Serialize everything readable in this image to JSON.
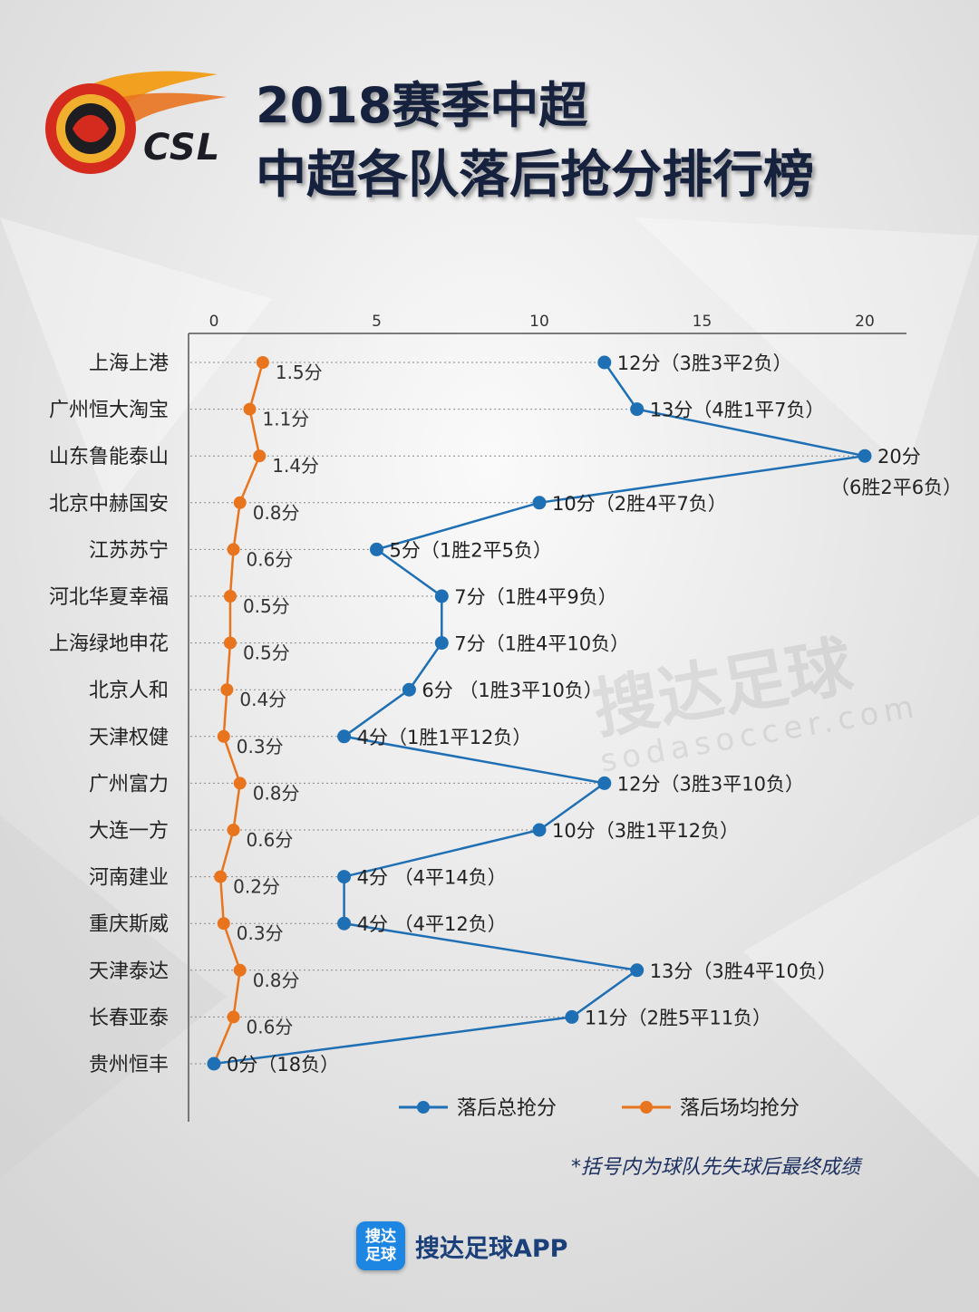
{
  "header": {
    "logo_text": "CSL",
    "title_line1": "2018赛季中超",
    "title_line2": "中超各队落后抢分排行榜"
  },
  "watermark": {
    "text_cn": "搜达足球",
    "text_url": "sodasoccer.com"
  },
  "footer": {
    "note": "*括号内为球队先失球后最终成绩",
    "app_icon_text": "搜达足球",
    "app_name": "搜达足球APP"
  },
  "colors": {
    "total_series": "#1f6fb5",
    "avg_series": "#e8741e",
    "axis": "#555555",
    "text": "#222222"
  },
  "chart_data": {
    "type": "line",
    "orientation": "horizontal",
    "xlim": [
      0,
      20
    ],
    "xticks": [
      0,
      5,
      10,
      15,
      20
    ],
    "categories": [
      "上海上港",
      "广州恒大淘宝",
      "山东鲁能泰山",
      "北京中赫国安",
      "江苏苏宁",
      "河北华夏幸福",
      "上海绿地申花",
      "北京人和",
      "天津权健",
      "广州富力",
      "大连一方",
      "河南建业",
      "重庆斯威",
      "天津泰达",
      "长春亚泰",
      "贵州恒丰"
    ],
    "series": [
      {
        "name": "落后总抢分",
        "color": "#1f6fb5",
        "values": [
          12,
          13,
          20,
          10,
          5,
          7,
          7,
          6,
          4,
          12,
          10,
          4,
          4,
          13,
          11,
          0
        ],
        "labels": [
          "12分（3胜3平2负）",
          "13分（4胜1平7负）",
          "20分",
          "10分（2胜4平7负）",
          "5分（1胜2平5负）",
          "7分（1胜4平9负）",
          "7分（1胜4平10负）",
          "6分 （1胜3平10负）",
          "4分（1胜1平12负）",
          "12分（3胜3平10负）",
          "10分（3胜1平12负）",
          "4分 （4平14负）",
          "4分 （4平12负）",
          "13分（3胜4平10负）",
          "11分（2胜5平11负）",
          "0分（18负）"
        ],
        "extra_label_row2": "（6胜2平6负）"
      },
      {
        "name": "落后场均抢分",
        "color": "#e8741e",
        "values": [
          1.5,
          1.1,
          1.4,
          0.8,
          0.6,
          0.5,
          0.5,
          0.4,
          0.3,
          0.8,
          0.6,
          0.2,
          0.3,
          0.8,
          0.6,
          0
        ],
        "labels": [
          "1.5分",
          "1.1分",
          "1.4分",
          "0.8分",
          "0.6分",
          "0.5分",
          "0.5分",
          "0.4分",
          "0.3分",
          "0.8分",
          "0.6分",
          "0.2分",
          "0.3分",
          "0.8分",
          "0.6分",
          ""
        ]
      }
    ],
    "legend": "bottom"
  }
}
